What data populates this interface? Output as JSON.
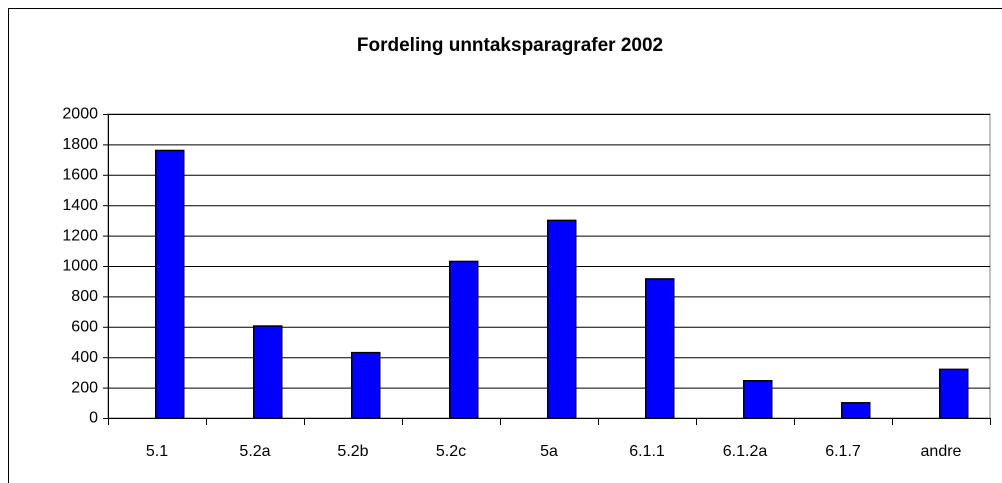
{
  "chart_data": {
    "type": "bar",
    "title": "Fordeling unntaksparagrafer 2002",
    "categories": [
      "5.1",
      "5.2a",
      "5.2b",
      "5.2c",
      "5a",
      "6.1.1",
      "6.1.2a",
      "6.1.7",
      "andre"
    ],
    "values": [
      1760,
      605,
      430,
      1030,
      1300,
      915,
      245,
      100,
      320
    ],
    "color": "#0000ff",
    "ylim": [
      0,
      2000
    ],
    "yticks": [
      0,
      200,
      400,
      600,
      800,
      1000,
      1200,
      1400,
      1600,
      1800,
      2000
    ],
    "grid": true
  }
}
